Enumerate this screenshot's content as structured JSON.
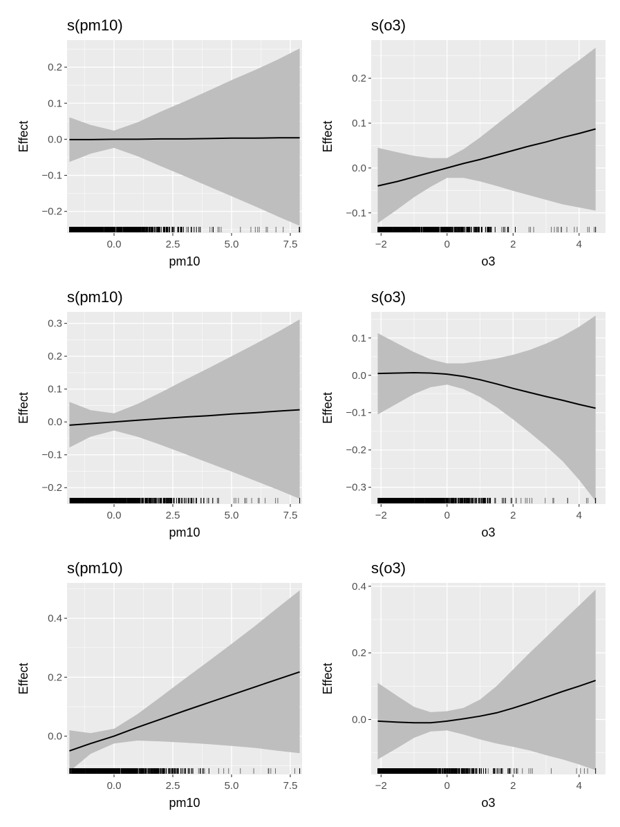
{
  "chart_data": [
    {
      "type": "line",
      "title": "s(pm10)",
      "xlabel": "pm10",
      "ylabel": "Effect",
      "xlim": [
        -2.0,
        8.0
      ],
      "ylim": [
        -0.26,
        0.275
      ],
      "xticks": [
        0,
        2.5,
        5,
        7.5
      ],
      "xtick_labels": [
        "0.0",
        "2.5",
        "5.0",
        "7.5"
      ],
      "yticks": [
        -0.2,
        -0.1,
        0,
        0.1,
        0.2
      ],
      "ytick_labels": [
        "−0.2",
        "−0.1",
        "0.0",
        "0.1",
        "0.2"
      ],
      "x": [
        -1.9,
        -1,
        0,
        1,
        2,
        3,
        4,
        5,
        6,
        7,
        7.9
      ],
      "fit": [
        -0.001,
        -0.001,
        0,
        0,
        0.001,
        0.001,
        0.002,
        0.003,
        0.003,
        0.004,
        0.004
      ],
      "lower": [
        -0.063,
        -0.04,
        -0.024,
        -0.047,
        -0.075,
        -0.102,
        -0.13,
        -0.158,
        -0.186,
        -0.215,
        -0.24
      ],
      "upper": [
        0.061,
        0.04,
        0.024,
        0.047,
        0.077,
        0.105,
        0.134,
        0.164,
        0.192,
        0.222,
        0.252
      ]
    },
    {
      "type": "line",
      "title": "s(o3)",
      "xlabel": "o3",
      "ylabel": "Effect",
      "xlim": [
        -2.3,
        4.8
      ],
      "ylim": [
        -0.145,
        0.285
      ],
      "xticks": [
        -2,
        0,
        2,
        4
      ],
      "xtick_labels": [
        "−2",
        "0",
        "2",
        "4"
      ],
      "yticks": [
        -0.1,
        0,
        0.1,
        0.2
      ],
      "ytick_labels": [
        "−0.1",
        "0.0",
        "0.1",
        "0.2"
      ],
      "x": [
        -2.1,
        -1.5,
        -1,
        -0.5,
        0,
        0.5,
        1,
        1.5,
        2,
        2.5,
        3,
        3.5,
        4,
        4.5
      ],
      "fit": [
        -0.04,
        -0.03,
        -0.02,
        -0.01,
        0,
        0.01,
        0.019,
        0.029,
        0.039,
        0.049,
        0.058,
        0.068,
        0.077,
        0.087
      ],
      "lower": [
        -0.123,
        -0.092,
        -0.065,
        -0.042,
        -0.022,
        -0.022,
        -0.03,
        -0.04,
        -0.051,
        -0.061,
        -0.071,
        -0.081,
        -0.088,
        -0.095
      ],
      "upper": [
        0.045,
        0.035,
        0.027,
        0.022,
        0.022,
        0.042,
        0.068,
        0.097,
        0.126,
        0.155,
        0.184,
        0.213,
        0.24,
        0.268
      ]
    },
    {
      "type": "line",
      "title": "s(pm10)",
      "xlabel": "pm10",
      "ylabel": "Effect",
      "xlim": [
        -2.0,
        8.0
      ],
      "ylim": [
        -0.25,
        0.335
      ],
      "xticks": [
        0,
        2.5,
        5,
        7.5
      ],
      "xtick_labels": [
        "0.0",
        "2.5",
        "5.0",
        "7.5"
      ],
      "yticks": [
        -0.2,
        -0.1,
        0,
        0.1,
        0.2,
        0.3
      ],
      "ytick_labels": [
        "−0.2",
        "−0.1",
        "0.0",
        "0.1",
        "0.2",
        "0.3"
      ],
      "x": [
        -1.9,
        -1,
        0,
        1,
        2,
        3,
        4,
        5,
        6,
        7,
        7.9
      ],
      "fit": [
        -0.01,
        -0.005,
        0,
        0.005,
        0.01,
        0.015,
        0.019,
        0.024,
        0.028,
        0.033,
        0.037
      ],
      "lower": [
        -0.078,
        -0.045,
        -0.026,
        -0.045,
        -0.07,
        -0.097,
        -0.124,
        -0.151,
        -0.179,
        -0.207,
        -0.234
      ],
      "upper": [
        0.061,
        0.036,
        0.026,
        0.055,
        0.09,
        0.127,
        0.163,
        0.2,
        0.237,
        0.275,
        0.312
      ]
    },
    {
      "type": "line",
      "title": "s(o3)",
      "xlabel": "o3",
      "ylabel": "Effect",
      "xlim": [
        -2.3,
        4.8
      ],
      "ylim": [
        -0.345,
        0.17
      ],
      "xticks": [
        -2,
        0,
        2,
        4
      ],
      "xtick_labels": [
        "−2",
        "0",
        "2",
        "4"
      ],
      "yticks": [
        -0.3,
        -0.2,
        -0.1,
        0,
        0.1
      ],
      "ytick_labels": [
        "−0.3",
        "−0.2",
        "−0.1",
        "0.0",
        "0.1"
      ],
      "x": [
        -2.1,
        -1.5,
        -1,
        -0.5,
        0,
        0.5,
        1,
        1.5,
        2,
        2.5,
        3,
        3.5,
        4,
        4.5
      ],
      "fit": [
        0.005,
        0.006,
        0.007,
        0.006,
        0.003,
        -0.003,
        -0.012,
        -0.023,
        -0.035,
        -0.046,
        -0.057,
        -0.067,
        -0.078,
        -0.088
      ],
      "lower": [
        -0.105,
        -0.075,
        -0.05,
        -0.032,
        -0.025,
        -0.037,
        -0.058,
        -0.085,
        -0.118,
        -0.153,
        -0.19,
        -0.23,
        -0.28,
        -0.337
      ],
      "upper": [
        0.113,
        0.085,
        0.062,
        0.043,
        0.032,
        0.032,
        0.038,
        0.045,
        0.055,
        0.068,
        0.085,
        0.105,
        0.13,
        0.16
      ]
    },
    {
      "type": "line",
      "title": "s(pm10)",
      "xlabel": "pm10",
      "ylabel": "Effect",
      "xlim": [
        -2.0,
        8.0
      ],
      "ylim": [
        -0.13,
        0.52
      ],
      "xticks": [
        0,
        2.5,
        5,
        7.5
      ],
      "xtick_labels": [
        "0.0",
        "2.5",
        "5.0",
        "7.5"
      ],
      "yticks": [
        0,
        0.2,
        0.4
      ],
      "ytick_labels": [
        "0.0",
        "0.2",
        "0.4"
      ],
      "x": [
        -1.9,
        -1,
        0,
        1,
        2,
        3,
        4,
        5,
        6,
        7,
        7.9
      ],
      "fit": [
        -0.05,
        -0.025,
        0,
        0.03,
        0.058,
        0.086,
        0.113,
        0.14,
        0.167,
        0.194,
        0.218
      ],
      "lower": [
        -0.12,
        -0.06,
        -0.025,
        -0.015,
        -0.018,
        -0.022,
        -0.027,
        -0.033,
        -0.04,
        -0.05,
        -0.058
      ],
      "upper": [
        0.02,
        0.01,
        0.025,
        0.075,
        0.134,
        0.194,
        0.253,
        0.313,
        0.374,
        0.438,
        0.495
      ]
    },
    {
      "type": "line",
      "title": "s(o3)",
      "xlabel": "o3",
      "ylabel": "Effect",
      "xlim": [
        -2.3,
        4.8
      ],
      "ylim": [
        -0.165,
        0.41
      ],
      "xticks": [
        -2,
        0,
        2,
        4
      ],
      "xtick_labels": [
        "−2",
        "0",
        "2",
        "4"
      ],
      "yticks": [
        0,
        0.2,
        0.4
      ],
      "ytick_labels": [
        "0.0",
        "0.2",
        "0.4"
      ],
      "x": [
        -2.1,
        -1.5,
        -1,
        -0.5,
        0,
        0.5,
        1,
        1.5,
        2,
        2.5,
        3,
        3.5,
        4,
        4.5
      ],
      "fit": [
        -0.005,
        -0.008,
        -0.01,
        -0.01,
        -0.005,
        0.002,
        0.01,
        0.02,
        0.034,
        0.05,
        0.067,
        0.084,
        0.1,
        0.117
      ],
      "lower": [
        -0.12,
        -0.085,
        -0.055,
        -0.036,
        -0.033,
        -0.045,
        -0.06,
        -0.072,
        -0.082,
        -0.093,
        -0.107,
        -0.12,
        -0.135,
        -0.152
      ],
      "upper": [
        0.11,
        0.07,
        0.038,
        0.022,
        0.025,
        0.035,
        0.06,
        0.1,
        0.15,
        0.2,
        0.247,
        0.295,
        0.342,
        0.39
      ]
    }
  ]
}
